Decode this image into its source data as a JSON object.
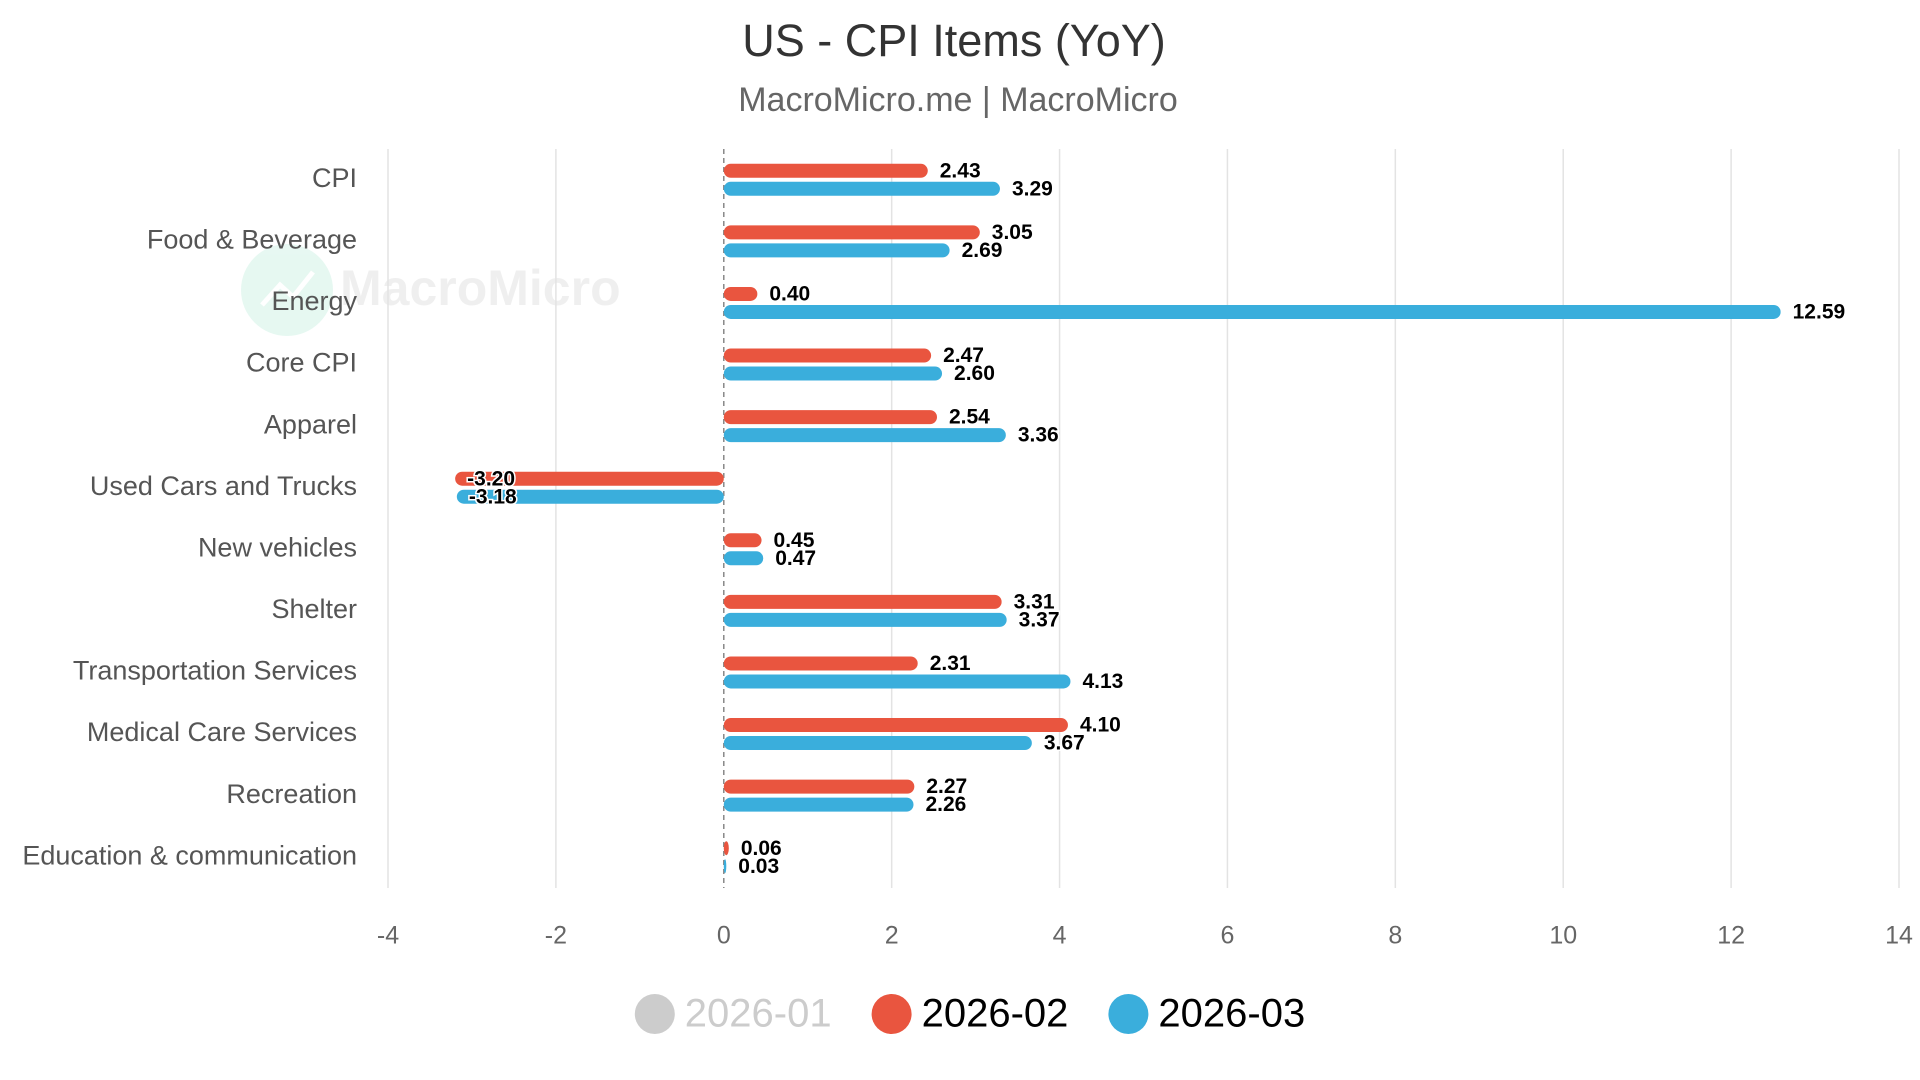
{
  "chart_data": {
    "type": "hbar",
    "title": "US - CPI Items (YoY)",
    "subtitle": "MacroMicro.me | MacroMicro",
    "watermark": "MacroMicro",
    "categories": [
      "CPI",
      "Food & Beverage",
      "Energy",
      "Core CPI",
      "Apparel",
      "Used Cars and Trucks",
      "New vehicles",
      "Shelter",
      "Transportation Services",
      "Medical Care Services",
      "Recreation",
      "Education & communication"
    ],
    "series": [
      {
        "name": "2026-01",
        "color": "#cccccc",
        "visible": false,
        "values": [
          null,
          null,
          null,
          null,
          null,
          null,
          null,
          null,
          null,
          null,
          null,
          null
        ]
      },
      {
        "name": "2026-02",
        "color": "#e9553f",
        "visible": true,
        "values": [
          2.43,
          3.05,
          0.4,
          2.47,
          2.54,
          -3.2,
          0.45,
          3.31,
          2.31,
          4.1,
          2.27,
          0.06
        ],
        "value_labels": [
          "2.43",
          "3.05",
          "0.40",
          "2.47",
          "2.54",
          "-3.20",
          "0.45",
          "3.31",
          "2.31",
          "4.10",
          "2.27",
          "0.06"
        ]
      },
      {
        "name": "2026-03",
        "color": "#3aaedc",
        "visible": true,
        "values": [
          3.29,
          2.69,
          12.59,
          2.6,
          3.36,
          -3.18,
          0.47,
          3.37,
          4.13,
          3.67,
          2.26,
          0.03
        ],
        "value_labels": [
          "3.29",
          "2.69",
          "12.59",
          "2.60",
          "3.36",
          "-3.18",
          "0.47",
          "3.37",
          "4.13",
          "3.67",
          "2.26",
          "0.03"
        ]
      }
    ],
    "xlim": [
      -4,
      14
    ],
    "xticks": [
      -4,
      -2,
      0,
      2,
      4,
      6,
      8,
      10,
      12,
      14
    ],
    "grid": true
  }
}
